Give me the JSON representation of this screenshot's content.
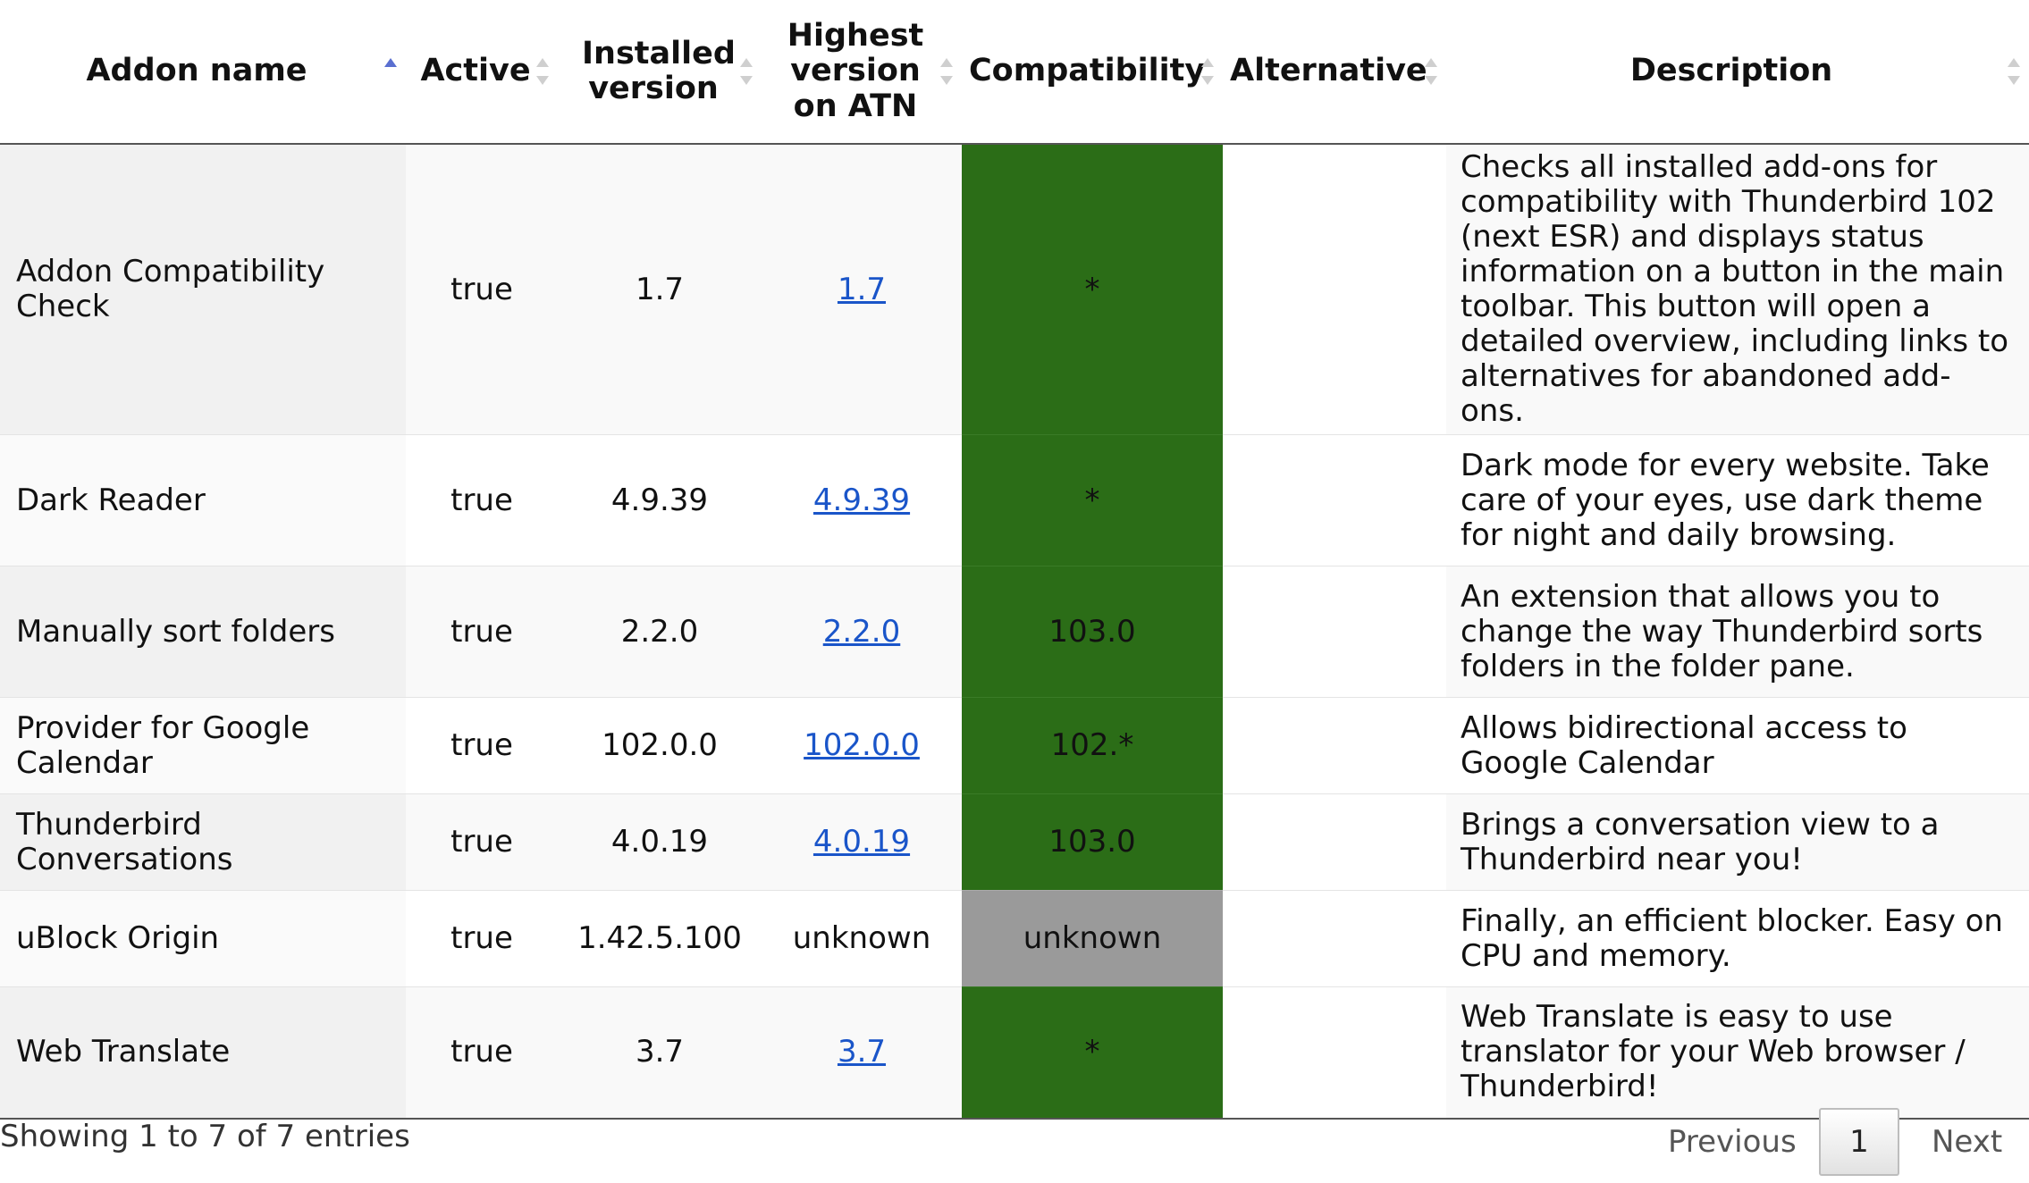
{
  "table": {
    "headers": {
      "name": "Addon name",
      "active": "Active",
      "installed": "Installed version",
      "highest_l1": "Highest",
      "highest_l2": "version",
      "highest_l3": "on ATN",
      "compat": "Compatibility",
      "alt": "Alternative",
      "desc": "Description"
    },
    "sort": {
      "column": "Addon name",
      "direction": "ascending"
    },
    "rows": [
      {
        "name": "Addon Compatibility Check",
        "active": "true",
        "installed": "1.7",
        "highest": "1.7",
        "highest_link": true,
        "compat": "*",
        "compat_status": "compatible",
        "alt": "",
        "desc": "Checks all installed add-ons for compatibility with Thunderbird 102 (next ESR) and displays status information on a button in the main toolbar. This button will open a detailed overview, including links to alternatives for abandoned add-ons."
      },
      {
        "name": "Dark Reader",
        "active": "true",
        "installed": "4.9.39",
        "highest": "4.9.39",
        "highest_link": true,
        "compat": "*",
        "compat_status": "compatible",
        "alt": "",
        "desc": "Dark mode for every website. Take care of your eyes, use dark theme for night and daily browsing."
      },
      {
        "name": "Manually sort folders",
        "active": "true",
        "installed": "2.2.0",
        "highest": "2.2.0",
        "highest_link": true,
        "compat": "103.0",
        "compat_status": "compatible",
        "alt": "",
        "desc": "An extension that allows you to change the way Thunderbird sorts folders in the folder pane."
      },
      {
        "name": "Provider for Google Calendar",
        "active": "true",
        "installed": "102.0.0",
        "highest": "102.0.0",
        "highest_link": true,
        "compat": "102.*",
        "compat_status": "compatible",
        "alt": "",
        "desc": "Allows bidirectional access to Google Calendar"
      },
      {
        "name": "Thunderbird Conversations",
        "active": "true",
        "installed": "4.0.19",
        "highest": "4.0.19",
        "highest_link": true,
        "compat": "103.0",
        "compat_status": "compatible",
        "alt": "",
        "desc": "Brings a conversation view to a Thunderbird near you!"
      },
      {
        "name": "uBlock Origin",
        "active": "true",
        "installed": "1.42.5.100",
        "highest": "unknown",
        "highest_link": false,
        "compat": "unknown",
        "compat_status": "unknown",
        "alt": "",
        "desc": "Finally, an efficient blocker. Easy on CPU and memory."
      },
      {
        "name": "Web Translate",
        "active": "true",
        "installed": "3.7",
        "highest": "3.7",
        "highest_link": true,
        "compat": "*",
        "compat_status": "compatible",
        "alt": "",
        "desc": "Web Translate is easy to use translator for your Web browser / Thunderbird!"
      }
    ]
  },
  "footer": {
    "info": "Showing 1 to 7 of 7 entries",
    "previous": "Previous",
    "current_page": "1",
    "next": "Next"
  },
  "colors": {
    "compatible": "#2b6d17",
    "unknown": "#9a9a9a",
    "link": "#1a55c9",
    "sort_active": "#5a6fd0"
  }
}
